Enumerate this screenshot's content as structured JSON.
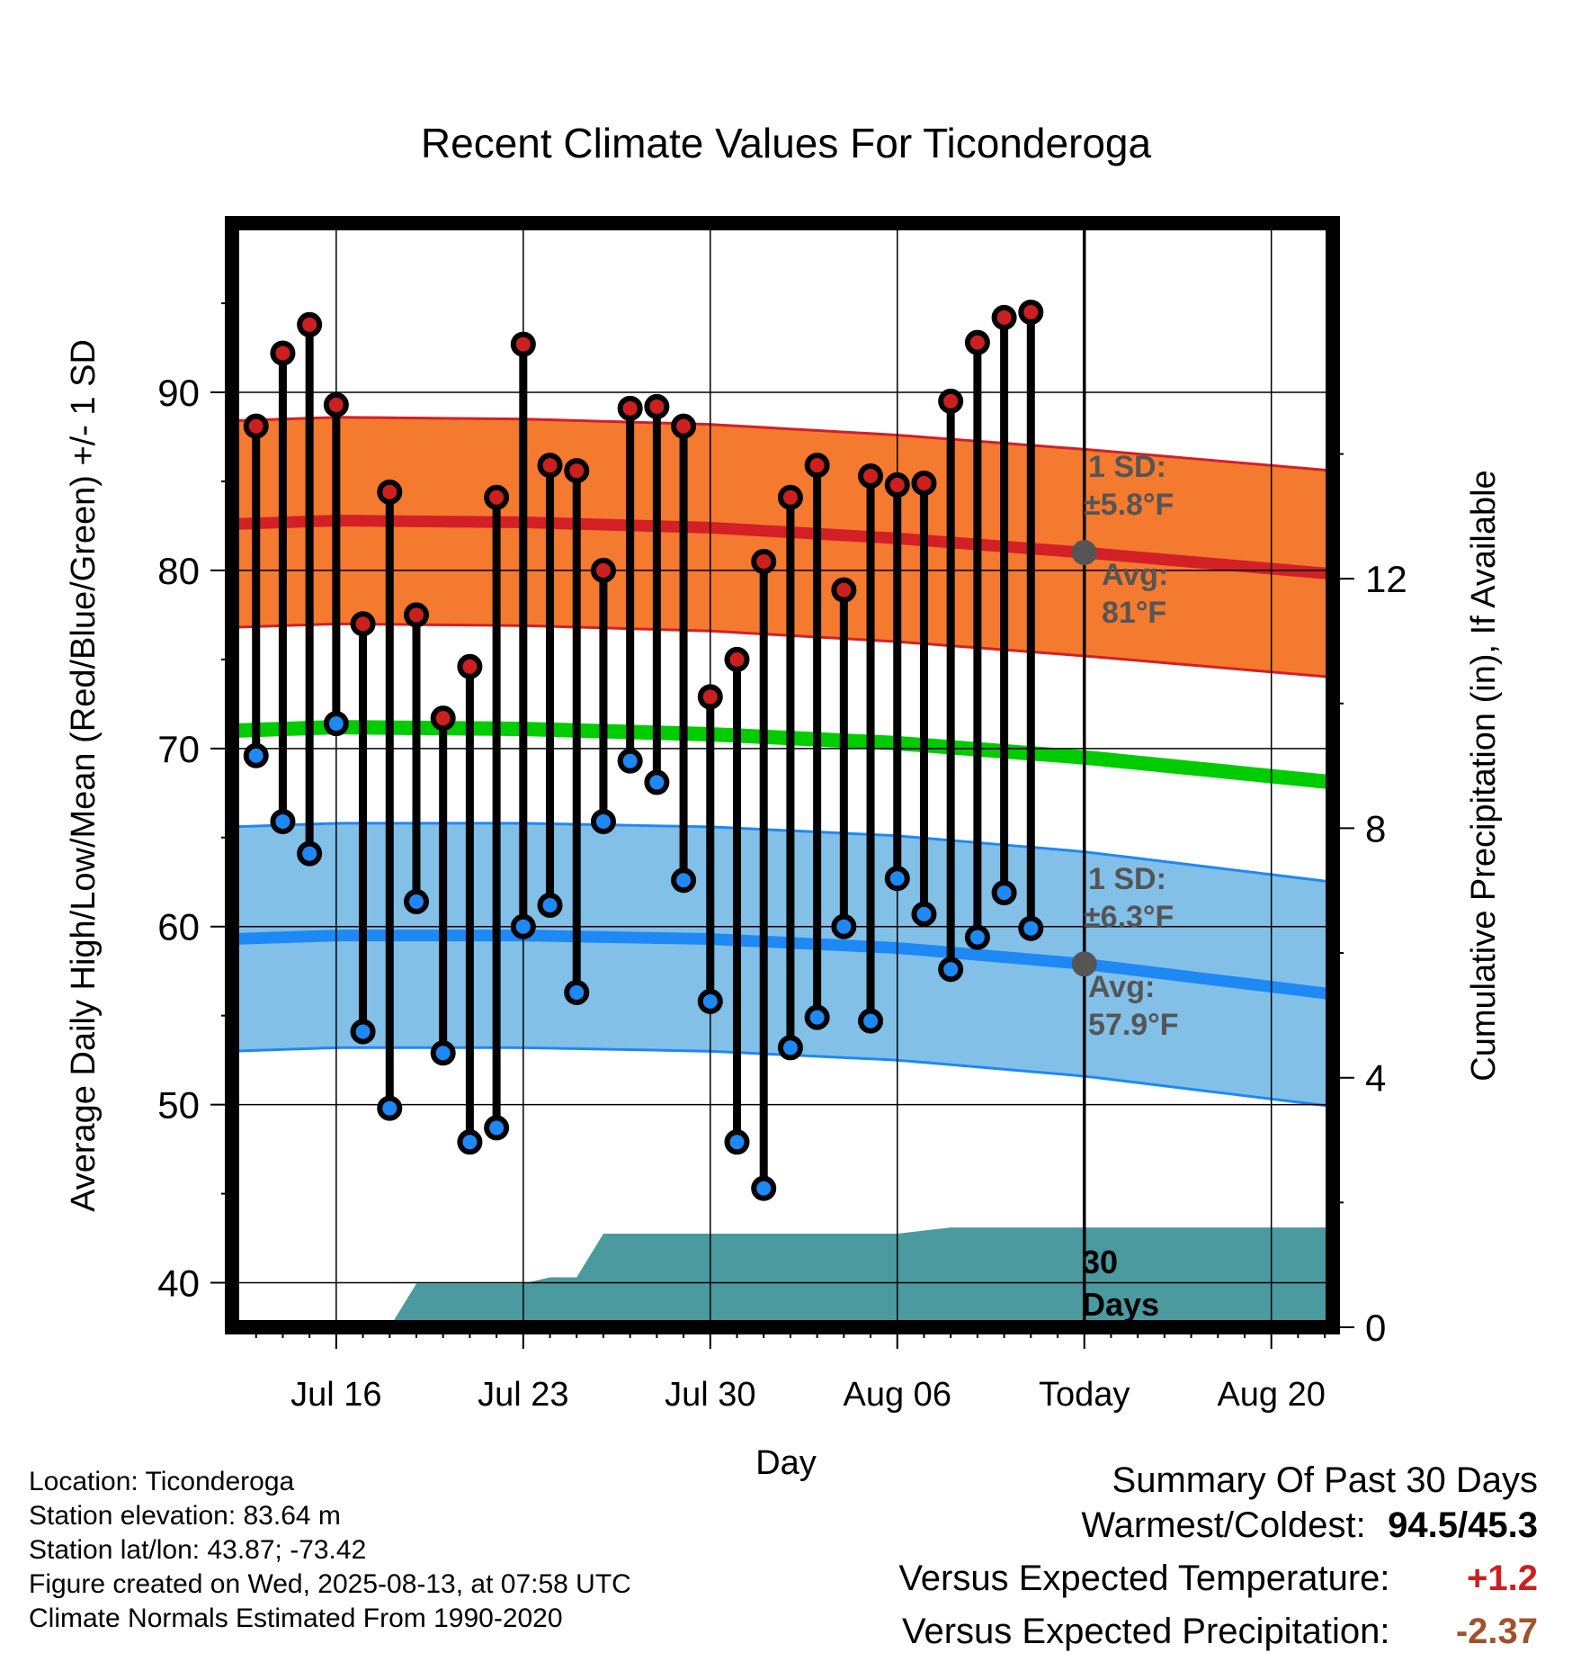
{
  "chart_data": {
    "type": "line",
    "title": "Recent Climate Values For Ticonderoga",
    "xlabel": "Day",
    "ylabel": "Average Daily High/Low/Mean (Red/Blue/Green) +/- 1 SD",
    "y2label": "Cumulative Precipitation (in), If Available",
    "ylim": [
      37.5,
      99.5
    ],
    "y_ticks": [
      40,
      50,
      60,
      70,
      80,
      90
    ],
    "y2lim": [
      0,
      17.7
    ],
    "y2_ticks": [
      0,
      4,
      8,
      12
    ],
    "x_day_range": [
      -31.9,
      9.3
    ],
    "x_ticks": [
      {
        "label": "Jul 16",
        "day": -28
      },
      {
        "label": "Jul 23",
        "day": -21
      },
      {
        "label": "Jul 30",
        "day": -14
      },
      {
        "label": "Aug 06",
        "day": -7
      },
      {
        "label": "Today",
        "day": 0
      },
      {
        "label": "Aug 20",
        "day": 7
      }
    ],
    "today_label": "Today",
    "grid": true,
    "daily": [
      {
        "day": -31,
        "high": 88.1,
        "low": 69.6
      },
      {
        "day": -30,
        "high": 92.2,
        "low": 65.9
      },
      {
        "day": -29,
        "high": 93.8,
        "low": 64.1
      },
      {
        "day": -28,
        "high": 89.3,
        "low": 71.4
      },
      {
        "day": -27,
        "high": 77.0,
        "low": 54.1
      },
      {
        "day": -26,
        "high": 84.4,
        "low": 49.8
      },
      {
        "day": -25,
        "high": 77.5,
        "low": 61.4
      },
      {
        "day": -24,
        "high": 71.7,
        "low": 52.9
      },
      {
        "day": -23,
        "high": 74.6,
        "low": 47.9
      },
      {
        "day": -22,
        "high": 84.1,
        "low": 48.7
      },
      {
        "day": -21,
        "high": 92.7,
        "low": 60.0
      },
      {
        "day": -20,
        "high": 85.9,
        "low": 61.2
      },
      {
        "day": -19,
        "high": 85.6,
        "low": 56.3
      },
      {
        "day": -18,
        "high": 80.0,
        "low": 65.9
      },
      {
        "day": -17,
        "high": 89.1,
        "low": 69.3
      },
      {
        "day": -16,
        "high": 89.2,
        "low": 68.1
      },
      {
        "day": -15,
        "high": 88.1,
        "low": 62.6
      },
      {
        "day": -14,
        "high": 72.9,
        "low": 55.8
      },
      {
        "day": -13,
        "high": 75.0,
        "low": 47.9
      },
      {
        "day": -12,
        "high": 80.5,
        "low": 45.3
      },
      {
        "day": -11,
        "high": 84.1,
        "low": 53.2
      },
      {
        "day": -10,
        "high": 85.9,
        "low": 54.9
      },
      {
        "day": -9,
        "high": 78.9,
        "low": 60.0
      },
      {
        "day": -8,
        "high": 85.3,
        "low": 54.7
      },
      {
        "day": -7,
        "high": 84.8,
        "low": 62.7
      },
      {
        "day": -6,
        "high": 84.9,
        "low": 60.7
      },
      {
        "day": -5,
        "high": 89.5,
        "low": 57.6
      },
      {
        "day": -4,
        "high": 92.8,
        "low": 59.4
      },
      {
        "day": -3,
        "high": 94.2,
        "low": 61.9
      },
      {
        "day": -2,
        "high": 94.5,
        "low": 59.9
      }
    ],
    "normal_high": {
      "day": [
        -31.9,
        -28,
        -21,
        -14,
        -7,
        0,
        9.3
      ],
      "mean": [
        82.6,
        82.8,
        82.7,
        82.4,
        81.8,
        81.0,
        79.8
      ],
      "sd": 5.8
    },
    "normal_low": {
      "day": [
        -31.9,
        -28,
        -21,
        -14,
        -7,
        0,
        9.3
      ],
      "mean": [
        59.3,
        59.5,
        59.5,
        59.3,
        58.8,
        57.9,
        56.2
      ],
      "sd": 6.3
    },
    "normal_mean": {
      "day": [
        -31.9,
        -28,
        -21,
        -14,
        -7,
        0,
        9.3
      ],
      "mean": [
        71.0,
        71.2,
        71.1,
        70.8,
        70.3,
        69.5,
        68.1
      ]
    },
    "precip_cumulative": {
      "day": [
        -26,
        -25,
        -21,
        -20,
        -19,
        -18,
        -14,
        -7,
        -5,
        0,
        9.3
      ],
      "value": [
        0,
        0.7,
        0.7,
        0.8,
        0.8,
        1.5,
        1.5,
        1.5,
        1.6,
        1.6,
        1.6
      ]
    },
    "annotations": {
      "high_sd_line1": "1 SD:",
      "high_sd_line2": "±5.8°F",
      "high_avg_line1": "Avg:",
      "high_avg_line2": "81°F",
      "low_sd_line1": "1 SD:",
      "low_sd_line2": "±6.3°F",
      "low_avg_line1": "Avg:",
      "low_avg_line2": "57.9°F",
      "days_line1": "30",
      "days_line2": "Days"
    },
    "colors": {
      "high_band": "#f47a2f",
      "high_line": "#d32027",
      "low_band": "#82c0e8",
      "low_line": "#1e88f5",
      "mean_line": "#00cc00",
      "precip": "#4a9aa0",
      "high_dot": "#cc2020",
      "low_dot": "#1e88f5",
      "annotation": "#555555"
    }
  },
  "info": {
    "location": "Location: Ticonderoga",
    "elevation": "Station elevation: 83.64 m",
    "latlon": "Station lat/lon: 43.87; -73.42",
    "created": "Figure created on Wed, 2025-08-13, at 07:58 UTC",
    "normals": "Climate Normals Estimated From 1990-2020"
  },
  "summary": {
    "title": "Summary Of Past 30 Days",
    "warmest_label": "Warmest/Coldest:",
    "warmest_value": "94.5/45.3",
    "temp_label": "Versus Expected Temperature:",
    "temp_value": "+1.2",
    "temp_color": "#cc2020",
    "precip_label": "Versus Expected Precipitation:",
    "precip_value": "-2.37",
    "precip_color": "#a0522d"
  }
}
